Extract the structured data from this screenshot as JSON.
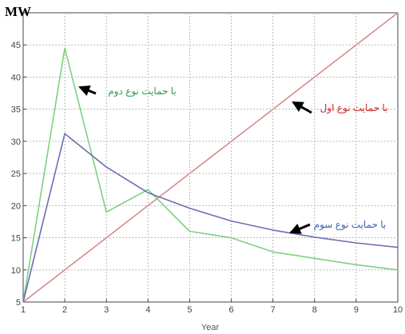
{
  "chart_data": {
    "type": "line",
    "ylabel": "MW",
    "xlabel": "Year",
    "xlim": [
      1,
      10
    ],
    "ylim": [
      5,
      50
    ],
    "x_ticks": [
      1,
      2,
      3,
      4,
      5,
      6,
      7,
      8,
      9,
      10
    ],
    "y_ticks": [
      5,
      10,
      15,
      20,
      25,
      30,
      35,
      40,
      45
    ],
    "grid": true,
    "x": [
      1,
      2,
      3,
      4,
      5,
      6,
      7,
      8,
      9,
      10
    ],
    "series": [
      {
        "key": "type1",
        "color": "#d98a8a",
        "values": [
          5,
          10,
          15,
          20,
          25,
          30,
          35,
          40,
          45,
          50
        ],
        "annotation": "با حمایت نوع اول",
        "annotation_color": "#c62828"
      },
      {
        "key": "type2",
        "color": "#7fd07f",
        "values": [
          5,
          44.5,
          19,
          22.5,
          16,
          15,
          12.8,
          11.8,
          10.8,
          10
        ],
        "annotation": "با حمایت نوع دوم",
        "annotation_color": "#2e9e4a"
      },
      {
        "key": "type3",
        "color": "#6b6fb5",
        "values": [
          5,
          31.2,
          26,
          22,
          19.6,
          17.6,
          16.2,
          15.1,
          14.2,
          13.5
        ],
        "annotation": "با حمایت نوع سوم",
        "annotation_color": "#3f5fb5"
      }
    ]
  }
}
